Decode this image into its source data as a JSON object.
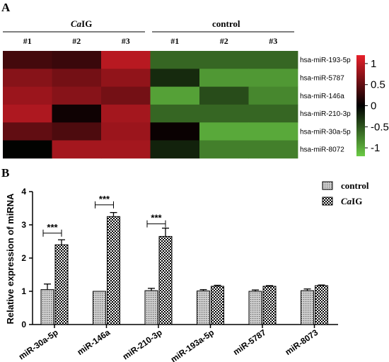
{
  "panel_a": {
    "letter": "A",
    "group_left": "CaIG",
    "group_left_italic": "Ca",
    "group_left_rest": "IG",
    "group_right": "control",
    "columns": [
      "#1",
      "#2",
      "#3",
      "#1",
      "#2",
      "#3"
    ],
    "colorbar_ticks": [
      "1",
      "0.5",
      "0",
      "-0.5",
      "-1"
    ]
  },
  "panel_b": {
    "letter": "B",
    "significance": "***"
  },
  "colors": {
    "high": "#e8202a",
    "mid": "#000000",
    "low": "#6bcb45",
    "control_fill": "#b8b8b8",
    "caig_fill": "#ffffff"
  },
  "chart_data": [
    {
      "type": "heatmap",
      "rows": [
        "hsa-miR-193-5p",
        "hsa-miR-5787",
        "hsa-miR-146a",
        "hsa-miR-210-3p",
        "hsa-miR-30a-5p",
        "hsa-miR-8072"
      ],
      "columns": [
        "#1",
        "#2",
        "#3",
        "#1",
        "#2",
        "#3"
      ],
      "column_groups": [
        {
          "name": "CaIG",
          "columns": [
            0,
            1,
            2
          ]
        },
        {
          "name": "control",
          "columns": [
            3,
            4,
            5
          ]
        }
      ],
      "values": [
        [
          0.35,
          0.3,
          0.95,
          -0.6,
          -0.6,
          -0.6
        ],
        [
          0.7,
          0.6,
          0.75,
          -0.25,
          -0.9,
          -0.9
        ],
        [
          0.8,
          0.7,
          0.6,
          -0.95,
          -0.45,
          -0.8
        ],
        [
          0.9,
          0.08,
          0.85,
          -0.6,
          -0.6,
          -0.6
        ],
        [
          0.5,
          0.4,
          0.8,
          0.05,
          -1.0,
          -1.0
        ],
        [
          -0.02,
          0.85,
          0.85,
          -0.2,
          -0.75,
          -0.75
        ]
      ],
      "colorbar_range": [
        -1.2,
        1.2
      ],
      "colorbar_ticks": [
        1,
        0.5,
        0,
        -0.5,
        -1
      ]
    },
    {
      "type": "bar",
      "categories": [
        "miR-30a-5p",
        "miR-146a",
        "miR-210-3p",
        "miR-193a-5p",
        "miR-5787",
        "miR-8073"
      ],
      "series": [
        {
          "name": "control",
          "values": [
            1.05,
            1.0,
            1.02,
            1.01,
            1.0,
            1.02
          ],
          "errors": [
            0.17,
            0.0,
            0.07,
            0.04,
            0.04,
            0.05
          ]
        },
        {
          "name": "CaIG",
          "values": [
            2.4,
            3.25,
            2.65,
            1.15,
            1.15,
            1.17
          ],
          "errors": [
            0.15,
            0.12,
            0.25,
            0.03,
            0.02,
            0.02
          ]
        }
      ],
      "ylabel": "Relative expression of miRNA",
      "ylim": [
        0,
        4
      ],
      "yticks": [
        0,
        1,
        2,
        3,
        4
      ],
      "legend_position": "top-right",
      "significance_pairs": [
        0,
        1,
        2
      ],
      "significance_label": "***"
    }
  ]
}
